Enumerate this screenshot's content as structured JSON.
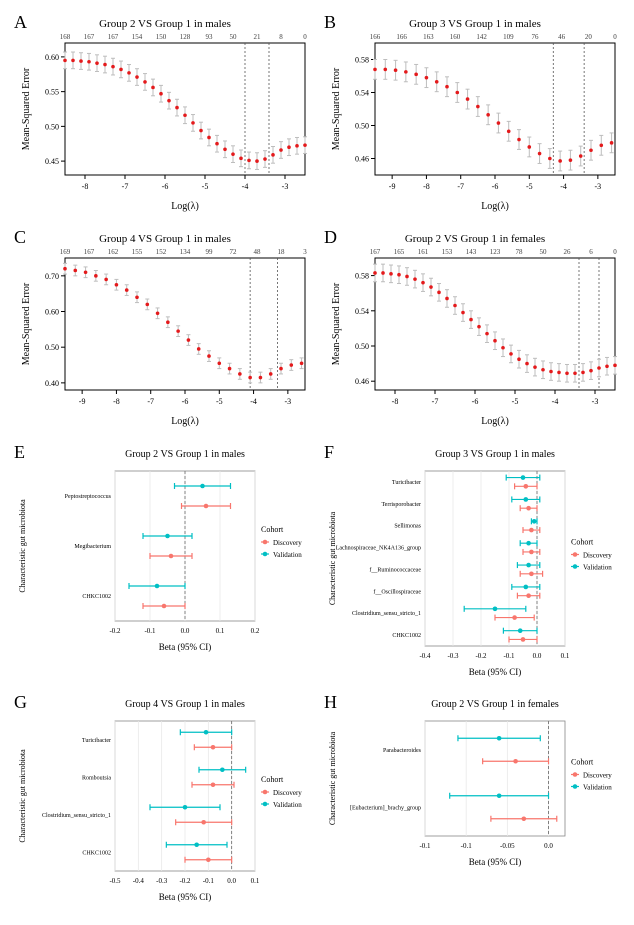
{
  "panels": {
    "A": {
      "title": "Group 2 VS Group 1 in males",
      "top_ticks": [
        "168",
        "167",
        "167",
        "154",
        "150",
        "128",
        "93",
        "50",
        "21",
        "8",
        "0"
      ],
      "xticks": [
        -8,
        -7,
        -6,
        -5,
        -4,
        -3
      ],
      "yticks": [
        0.45,
        0.5,
        0.55,
        0.6
      ],
      "ylab": "Mean-Squared Error",
      "xlab": "Log(λ)",
      "xlim": [
        -8.5,
        -2.5
      ],
      "ylim": [
        0.43,
        0.62
      ],
      "vlines": [
        -4.0,
        -3.4
      ],
      "curve": [
        {
          "x": -8.5,
          "y": 0.595,
          "e": 0.012
        },
        {
          "x": -8.3,
          "y": 0.595,
          "e": 0.012
        },
        {
          "x": -8.1,
          "y": 0.594,
          "e": 0.012
        },
        {
          "x": -7.9,
          "y": 0.593,
          "e": 0.012
        },
        {
          "x": -7.7,
          "y": 0.591,
          "e": 0.012
        },
        {
          "x": -7.5,
          "y": 0.589,
          "e": 0.012
        },
        {
          "x": -7.3,
          "y": 0.586,
          "e": 0.012
        },
        {
          "x": -7.1,
          "y": 0.582,
          "e": 0.012
        },
        {
          "x": -6.9,
          "y": 0.577,
          "e": 0.012
        },
        {
          "x": -6.7,
          "y": 0.571,
          "e": 0.012
        },
        {
          "x": -6.5,
          "y": 0.564,
          "e": 0.012
        },
        {
          "x": -6.3,
          "y": 0.556,
          "e": 0.012
        },
        {
          "x": -6.1,
          "y": 0.547,
          "e": 0.012
        },
        {
          "x": -5.9,
          "y": 0.537,
          "e": 0.012
        },
        {
          "x": -5.7,
          "y": 0.527,
          "e": 0.012
        },
        {
          "x": -5.5,
          "y": 0.516,
          "e": 0.012
        },
        {
          "x": -5.3,
          "y": 0.505,
          "e": 0.012
        },
        {
          "x": -5.1,
          "y": 0.494,
          "e": 0.012
        },
        {
          "x": -4.9,
          "y": 0.484,
          "e": 0.012
        },
        {
          "x": -4.7,
          "y": 0.475,
          "e": 0.012
        },
        {
          "x": -4.5,
          "y": 0.467,
          "e": 0.012
        },
        {
          "x": -4.3,
          "y": 0.46,
          "e": 0.012
        },
        {
          "x": -4.1,
          "y": 0.454,
          "e": 0.012
        },
        {
          "x": -3.9,
          "y": 0.451,
          "e": 0.012
        },
        {
          "x": -3.7,
          "y": 0.45,
          "e": 0.012
        },
        {
          "x": -3.5,
          "y": 0.453,
          "e": 0.012
        },
        {
          "x": -3.3,
          "y": 0.459,
          "e": 0.012
        },
        {
          "x": -3.1,
          "y": 0.466,
          "e": 0.012
        },
        {
          "x": -2.9,
          "y": 0.47,
          "e": 0.012
        },
        {
          "x": -2.7,
          "y": 0.472,
          "e": 0.012
        },
        {
          "x": -2.5,
          "y": 0.473,
          "e": 0.012
        }
      ]
    },
    "B": {
      "title": "Group 3 VS Group 1 in males",
      "top_ticks": [
        "166",
        "166",
        "163",
        "160",
        "142",
        "109",
        "76",
        "46",
        "20",
        "0"
      ],
      "xticks": [
        -9,
        -8,
        -7,
        -6,
        -5,
        -4,
        -3
      ],
      "yticks": [
        0.46,
        0.5,
        0.54,
        0.58
      ],
      "ylab": "Mean-Squared Error",
      "xlab": "Log(λ)",
      "xlim": [
        -9.5,
        -2.5
      ],
      "ylim": [
        0.44,
        0.6
      ],
      "vlines": [
        -4.3,
        -3.4
      ],
      "curve": [
        {
          "x": -9.5,
          "y": 0.568,
          "e": 0.012
        },
        {
          "x": -9.2,
          "y": 0.568,
          "e": 0.012
        },
        {
          "x": -8.9,
          "y": 0.567,
          "e": 0.012
        },
        {
          "x": -8.6,
          "y": 0.565,
          "e": 0.012
        },
        {
          "x": -8.3,
          "y": 0.562,
          "e": 0.012
        },
        {
          "x": -8.0,
          "y": 0.558,
          "e": 0.012
        },
        {
          "x": -7.7,
          "y": 0.553,
          "e": 0.012
        },
        {
          "x": -7.4,
          "y": 0.547,
          "e": 0.012
        },
        {
          "x": -7.1,
          "y": 0.54,
          "e": 0.012
        },
        {
          "x": -6.8,
          "y": 0.532,
          "e": 0.012
        },
        {
          "x": -6.5,
          "y": 0.523,
          "e": 0.012
        },
        {
          "x": -6.2,
          "y": 0.513,
          "e": 0.012
        },
        {
          "x": -5.9,
          "y": 0.503,
          "e": 0.012
        },
        {
          "x": -5.6,
          "y": 0.493,
          "e": 0.012
        },
        {
          "x": -5.3,
          "y": 0.483,
          "e": 0.012
        },
        {
          "x": -5.0,
          "y": 0.474,
          "e": 0.012
        },
        {
          "x": -4.7,
          "y": 0.466,
          "e": 0.012
        },
        {
          "x": -4.4,
          "y": 0.46,
          "e": 0.012
        },
        {
          "x": -4.1,
          "y": 0.457,
          "e": 0.012
        },
        {
          "x": -3.8,
          "y": 0.458,
          "e": 0.012
        },
        {
          "x": -3.5,
          "y": 0.463,
          "e": 0.012
        },
        {
          "x": -3.2,
          "y": 0.47,
          "e": 0.012
        },
        {
          "x": -2.9,
          "y": 0.476,
          "e": 0.012
        },
        {
          "x": -2.6,
          "y": 0.479,
          "e": 0.012
        }
      ]
    },
    "C": {
      "title": "Group 4 VS Group 1 in males",
      "top_ticks": [
        "169",
        "167",
        "162",
        "155",
        "152",
        "134",
        "99",
        "72",
        "48",
        "18",
        "3"
      ],
      "xticks": [
        -9,
        -8,
        -7,
        -6,
        -5,
        -4,
        -3
      ],
      "yticks": [
        0.4,
        0.5,
        0.6,
        0.7
      ],
      "ylab": "Mean-Squared Error",
      "xlab": "Log(λ)",
      "xlim": [
        -9.5,
        -2.5
      ],
      "ylim": [
        0.38,
        0.75
      ],
      "vlines": [
        -4.1,
        -3.3
      ],
      "curve": [
        {
          "x": -9.5,
          "y": 0.72,
          "e": 0.015
        },
        {
          "x": -9.2,
          "y": 0.715,
          "e": 0.015
        },
        {
          "x": -8.9,
          "y": 0.71,
          "e": 0.015
        },
        {
          "x": -8.6,
          "y": 0.7,
          "e": 0.015
        },
        {
          "x": -8.3,
          "y": 0.69,
          "e": 0.015
        },
        {
          "x": -8.0,
          "y": 0.675,
          "e": 0.015
        },
        {
          "x": -7.7,
          "y": 0.66,
          "e": 0.015
        },
        {
          "x": -7.4,
          "y": 0.64,
          "e": 0.015
        },
        {
          "x": -7.1,
          "y": 0.62,
          "e": 0.015
        },
        {
          "x": -6.8,
          "y": 0.595,
          "e": 0.015
        },
        {
          "x": -6.5,
          "y": 0.57,
          "e": 0.015
        },
        {
          "x": -6.2,
          "y": 0.545,
          "e": 0.015
        },
        {
          "x": -5.9,
          "y": 0.52,
          "e": 0.015
        },
        {
          "x": -5.6,
          "y": 0.495,
          "e": 0.015
        },
        {
          "x": -5.3,
          "y": 0.475,
          "e": 0.015
        },
        {
          "x": -5.0,
          "y": 0.455,
          "e": 0.015
        },
        {
          "x": -4.7,
          "y": 0.44,
          "e": 0.015
        },
        {
          "x": -4.4,
          "y": 0.425,
          "e": 0.015
        },
        {
          "x": -4.1,
          "y": 0.415,
          "e": 0.015
        },
        {
          "x": -3.8,
          "y": 0.415,
          "e": 0.015
        },
        {
          "x": -3.5,
          "y": 0.425,
          "e": 0.015
        },
        {
          "x": -3.2,
          "y": 0.44,
          "e": 0.015
        },
        {
          "x": -2.9,
          "y": 0.45,
          "e": 0.015
        },
        {
          "x": -2.6,
          "y": 0.455,
          "e": 0.015
        }
      ]
    },
    "D": {
      "title": "Group 2 VS Group 1 in females",
      "top_ticks": [
        "167",
        "165",
        "161",
        "153",
        "143",
        "123",
        "78",
        "50",
        "26",
        "6",
        "0"
      ],
      "xticks": [
        -8,
        -7,
        -6,
        -5,
        -4,
        -3
      ],
      "yticks": [
        0.46,
        0.5,
        0.54,
        0.58
      ],
      "ylab": "Mean-Squared Error",
      "xlab": "Log(λ)",
      "xlim": [
        -8.5,
        -2.5
      ],
      "ylim": [
        0.45,
        0.6
      ],
      "vlines": [
        -3.4,
        -2.9
      ],
      "curve": [
        {
          "x": -8.5,
          "y": 0.583,
          "e": 0.01
        },
        {
          "x": -8.3,
          "y": 0.583,
          "e": 0.01
        },
        {
          "x": -8.1,
          "y": 0.582,
          "e": 0.01
        },
        {
          "x": -7.9,
          "y": 0.581,
          "e": 0.01
        },
        {
          "x": -7.7,
          "y": 0.579,
          "e": 0.01
        },
        {
          "x": -7.5,
          "y": 0.576,
          "e": 0.01
        },
        {
          "x": -7.3,
          "y": 0.572,
          "e": 0.01
        },
        {
          "x": -7.1,
          "y": 0.567,
          "e": 0.01
        },
        {
          "x": -6.9,
          "y": 0.561,
          "e": 0.01
        },
        {
          "x": -6.7,
          "y": 0.554,
          "e": 0.01
        },
        {
          "x": -6.5,
          "y": 0.546,
          "e": 0.01
        },
        {
          "x": -6.3,
          "y": 0.538,
          "e": 0.01
        },
        {
          "x": -6.1,
          "y": 0.53,
          "e": 0.01
        },
        {
          "x": -5.9,
          "y": 0.522,
          "e": 0.01
        },
        {
          "x": -5.7,
          "y": 0.514,
          "e": 0.01
        },
        {
          "x": -5.5,
          "y": 0.506,
          "e": 0.01
        },
        {
          "x": -5.3,
          "y": 0.498,
          "e": 0.01
        },
        {
          "x": -5.1,
          "y": 0.491,
          "e": 0.01
        },
        {
          "x": -4.9,
          "y": 0.485,
          "e": 0.01
        },
        {
          "x": -4.7,
          "y": 0.48,
          "e": 0.01
        },
        {
          "x": -4.5,
          "y": 0.476,
          "e": 0.01
        },
        {
          "x": -4.3,
          "y": 0.473,
          "e": 0.01
        },
        {
          "x": -4.1,
          "y": 0.471,
          "e": 0.01
        },
        {
          "x": -3.9,
          "y": 0.47,
          "e": 0.01
        },
        {
          "x": -3.7,
          "y": 0.469,
          "e": 0.01
        },
        {
          "x": -3.5,
          "y": 0.469,
          "e": 0.01
        },
        {
          "x": -3.3,
          "y": 0.47,
          "e": 0.01
        },
        {
          "x": -3.1,
          "y": 0.472,
          "e": 0.01
        },
        {
          "x": -2.9,
          "y": 0.475,
          "e": 0.01
        },
        {
          "x": -2.7,
          "y": 0.477,
          "e": 0.01
        },
        {
          "x": -2.5,
          "y": 0.478,
          "e": 0.01
        }
      ]
    }
  },
  "forests": {
    "E": {
      "title": "Group 2 VS Group 1 in males",
      "xlim": [
        -0.2,
        0.2
      ],
      "xticks": [
        -0.2,
        -0.1,
        0.0,
        0.1,
        0.2
      ],
      "ylab": "Characteristic gut microbiota",
      "xlab": "Beta (95% CI)",
      "vline": 0.0,
      "rows": [
        {
          "label": "Peptostreptococcus",
          "d": {
            "b": 0.06,
            "l": -0.01,
            "h": 0.13
          },
          "v": {
            "b": 0.05,
            "l": -0.03,
            "h": 0.13
          }
        },
        {
          "label": "Megibacterium",
          "d": {
            "b": -0.04,
            "l": -0.1,
            "h": 0.02
          },
          "v": {
            "b": -0.05,
            "l": -0.12,
            "h": 0.02
          }
        },
        {
          "label": "CHKC1002",
          "d": {
            "b": -0.06,
            "l": -0.12,
            "h": 0.0
          },
          "v": {
            "b": -0.08,
            "l": -0.16,
            "h": 0.0
          }
        }
      ]
    },
    "F": {
      "title": "Group 3 VS Group 1 in males",
      "xlim": [
        -0.4,
        0.1
      ],
      "xticks": [
        -0.4,
        -0.3,
        -0.2,
        -0.1,
        0.0,
        0.1
      ],
      "ylab": "Characteristic gut microbiota",
      "xlab": "Beta (95% CI)",
      "vline": 0.0,
      "rows": [
        {
          "label": "Turicibacter",
          "d": {
            "b": -0.04,
            "l": -0.08,
            "h": 0.0
          },
          "v": {
            "b": -0.05,
            "l": -0.11,
            "h": 0.01
          }
        },
        {
          "label": "Terrisporobacter",
          "d": {
            "b": -0.03,
            "l": -0.06,
            "h": 0.0
          },
          "v": {
            "b": -0.04,
            "l": -0.09,
            "h": 0.01
          }
        },
        {
          "label": "Sellimonas",
          "d": {
            "b": -0.02,
            "l": -0.05,
            "h": 0.01
          },
          "v": {
            "b": -0.01,
            "l": -0.02,
            "h": 0.0
          }
        },
        {
          "label": "Lachnospiraceae_NK4A136_group",
          "d": {
            "b": -0.02,
            "l": -0.05,
            "h": 0.01
          },
          "v": {
            "b": -0.03,
            "l": -0.06,
            "h": 0.0
          }
        },
        {
          "label": "f__Ruminococcaceae",
          "d": {
            "b": -0.02,
            "l": -0.06,
            "h": 0.02
          },
          "v": {
            "b": -0.03,
            "l": -0.07,
            "h": 0.01
          }
        },
        {
          "label": "f__Oscillospiraceae",
          "d": {
            "b": -0.03,
            "l": -0.07,
            "h": 0.01
          },
          "v": {
            "b": -0.04,
            "l": -0.09,
            "h": 0.01
          }
        },
        {
          "label": "Clostridium_sensu_stricto_1",
          "d": {
            "b": -0.08,
            "l": -0.15,
            "h": -0.01
          },
          "v": {
            "b": -0.15,
            "l": -0.26,
            "h": -0.04
          }
        },
        {
          "label": "CHKC1002",
          "d": {
            "b": -0.05,
            "l": -0.1,
            "h": 0.0
          },
          "v": {
            "b": -0.06,
            "l": -0.12,
            "h": 0.0
          }
        }
      ]
    },
    "G": {
      "title": "Group 4 VS Group 1 in males",
      "xlim": [
        -0.5,
        0.1
      ],
      "xticks": [
        -0.5,
        -0.4,
        -0.3,
        -0.2,
        -0.1,
        0.0,
        0.1
      ],
      "ylab": "Characteristic gut microbiota",
      "xlab": "Beta (95% CI)",
      "vline": 0.0,
      "rows": [
        {
          "label": "Turicibacter",
          "d": {
            "b": -0.08,
            "l": -0.16,
            "h": 0.0
          },
          "v": {
            "b": -0.11,
            "l": -0.22,
            "h": 0.0
          }
        },
        {
          "label": "Romboutsia",
          "d": {
            "b": -0.08,
            "l": -0.17,
            "h": 0.01
          },
          "v": {
            "b": -0.04,
            "l": -0.14,
            "h": 0.06
          }
        },
        {
          "label": "Clostridium_sensu_stricto_1",
          "d": {
            "b": -0.12,
            "l": -0.24,
            "h": 0.0
          },
          "v": {
            "b": -0.2,
            "l": -0.35,
            "h": -0.05
          }
        },
        {
          "label": "CHKC1002",
          "d": {
            "b": -0.1,
            "l": -0.2,
            "h": 0.0
          },
          "v": {
            "b": -0.15,
            "l": -0.28,
            "h": -0.02
          }
        }
      ]
    },
    "H": {
      "title": "Group 2 VS Group 1 in females",
      "xlim": [
        -0.15,
        0.02
      ],
      "xticks": [
        -0.15,
        -0.1,
        -0.05,
        0.0
      ],
      "ylab": "Characteristic gut microbiota",
      "xlab": "Beta (95% CI)",
      "vline": 0.0,
      "rows": [
        {
          "label": "Parabacteroides",
          "d": {
            "b": -0.04,
            "l": -0.08,
            "h": 0.0
          },
          "v": {
            "b": -0.06,
            "l": -0.11,
            "h": -0.01
          }
        },
        {
          "label": "[Eubacterium]_brachy_group",
          "d": {
            "b": -0.03,
            "l": -0.07,
            "h": 0.01
          },
          "v": {
            "b": -0.06,
            "l": -0.12,
            "h": 0.0
          }
        }
      ]
    }
  },
  "colors": {
    "dot": "#e41a1c",
    "err": "#bdbdbd",
    "axis": "#000000",
    "discovery": "#f8766d",
    "validation": "#00bfc4"
  },
  "legend": {
    "title": "Cohort",
    "items": [
      {
        "label": "Discovery",
        "color": "#f8766d"
      },
      {
        "label": "Validation",
        "color": "#00bfc4"
      }
    ]
  }
}
